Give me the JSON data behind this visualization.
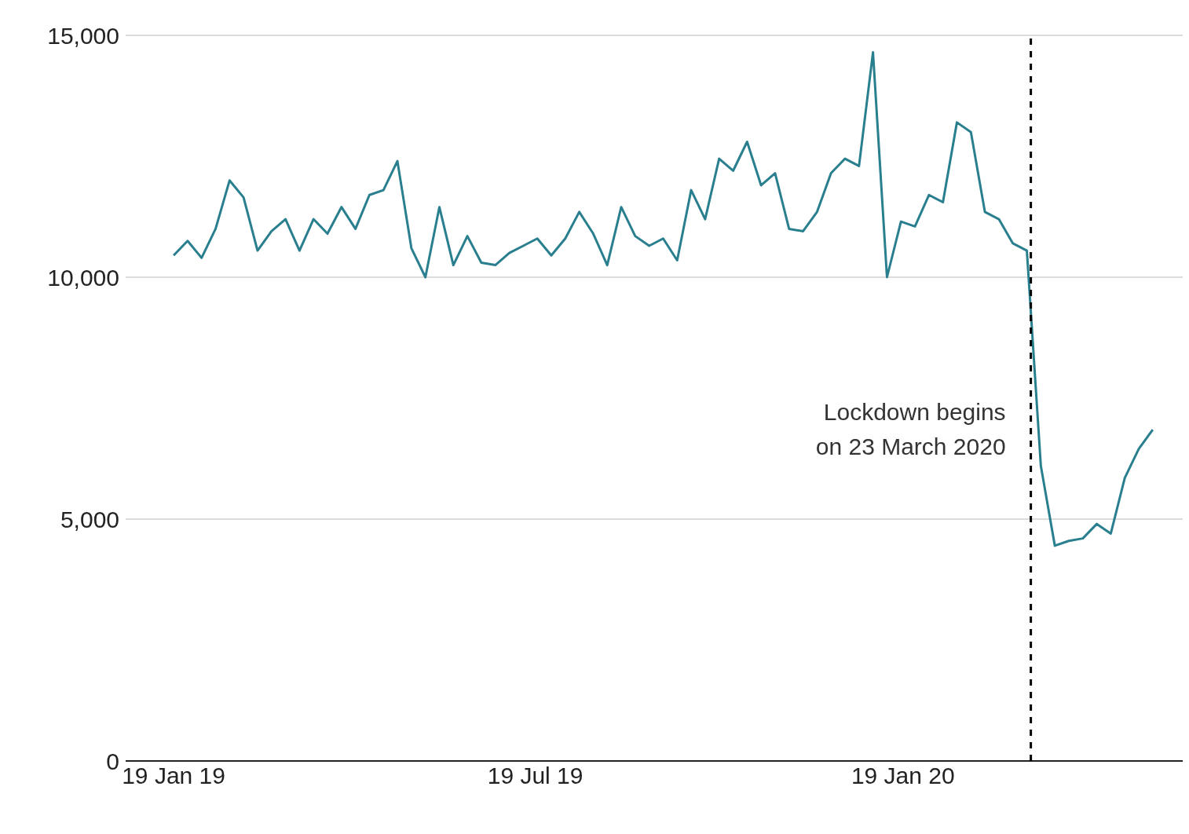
{
  "chart_data": {
    "type": "line",
    "x": [
      "2019-01-19",
      "2019-01-26",
      "2019-02-02",
      "2019-02-09",
      "2019-02-16",
      "2019-02-23",
      "2019-03-02",
      "2019-03-09",
      "2019-03-16",
      "2019-03-23",
      "2019-03-30",
      "2019-04-06",
      "2019-04-13",
      "2019-04-20",
      "2019-04-27",
      "2019-05-04",
      "2019-05-11",
      "2019-05-18",
      "2019-05-25",
      "2019-06-01",
      "2019-06-08",
      "2019-06-15",
      "2019-06-22",
      "2019-06-29",
      "2019-07-06",
      "2019-07-13",
      "2019-07-20",
      "2019-07-27",
      "2019-08-03",
      "2019-08-10",
      "2019-08-17",
      "2019-08-24",
      "2019-08-31",
      "2019-09-07",
      "2019-09-14",
      "2019-09-21",
      "2019-09-28",
      "2019-10-05",
      "2019-10-12",
      "2019-10-19",
      "2019-10-26",
      "2019-11-02",
      "2019-11-09",
      "2019-11-16",
      "2019-11-23",
      "2019-11-30",
      "2019-12-07",
      "2019-12-14",
      "2019-12-21",
      "2019-12-28",
      "2020-01-04",
      "2020-01-11",
      "2020-01-18",
      "2020-01-25",
      "2020-02-01",
      "2020-02-08",
      "2020-02-15",
      "2020-02-22",
      "2020-02-29",
      "2020-03-07",
      "2020-03-14",
      "2020-03-21",
      "2020-03-28",
      "2020-04-04",
      "2020-04-11",
      "2020-04-18",
      "2020-04-25",
      "2020-05-02",
      "2020-05-09",
      "2020-05-16",
      "2020-05-23"
    ],
    "series": [
      {
        "color": "#2a7f8f",
        "values": [
          10450,
          10750,
          10400,
          11000,
          12000,
          11650,
          10550,
          10950,
          11200,
          10550,
          11200,
          10900,
          11450,
          11000,
          11700,
          11800,
          12400,
          10600,
          10000,
          11450,
          10250,
          10850,
          10300,
          10250,
          10500,
          10650,
          10800,
          10450,
          10800,
          11350,
          10900,
          10250,
          11450,
          10850,
          10650,
          10800,
          10350,
          11800,
          11200,
          12450,
          12200,
          12800,
          11900,
          12150,
          11000,
          10950,
          11350,
          12150,
          12450,
          12300,
          14650,
          10000,
          11150,
          11050,
          11700,
          11550,
          13200,
          13000,
          11350,
          11200,
          10700,
          10550,
          6100,
          4450,
          4550,
          4600,
          4900,
          4700,
          5850,
          6450,
          6850
        ]
      }
    ],
    "xlim": [
      "2018-12-26",
      "2020-06-07"
    ],
    "xticks": [
      {
        "value": "2019-01-19",
        "label": "19 Jan 19"
      },
      {
        "value": "2019-07-19",
        "label": "19 Jul 19"
      },
      {
        "value": "2020-01-19",
        "label": "19 Jan 20"
      }
    ],
    "ylim": [
      0,
      15000
    ],
    "yticks": [
      {
        "value": 0,
        "label": "0"
      },
      {
        "value": 5000,
        "label": "5,000"
      },
      {
        "value": 10000,
        "label": "10,000"
      },
      {
        "value": 15000,
        "label": "15,000"
      }
    ],
    "grid": "y",
    "marker": "none",
    "line_style": "solid",
    "ref_lines": [
      {
        "axis": "x",
        "value": "2020-03-23",
        "label": "Lockdown begins\non 23 March 2020",
        "color": "#000000",
        "line_style": "dashed"
      }
    ]
  }
}
